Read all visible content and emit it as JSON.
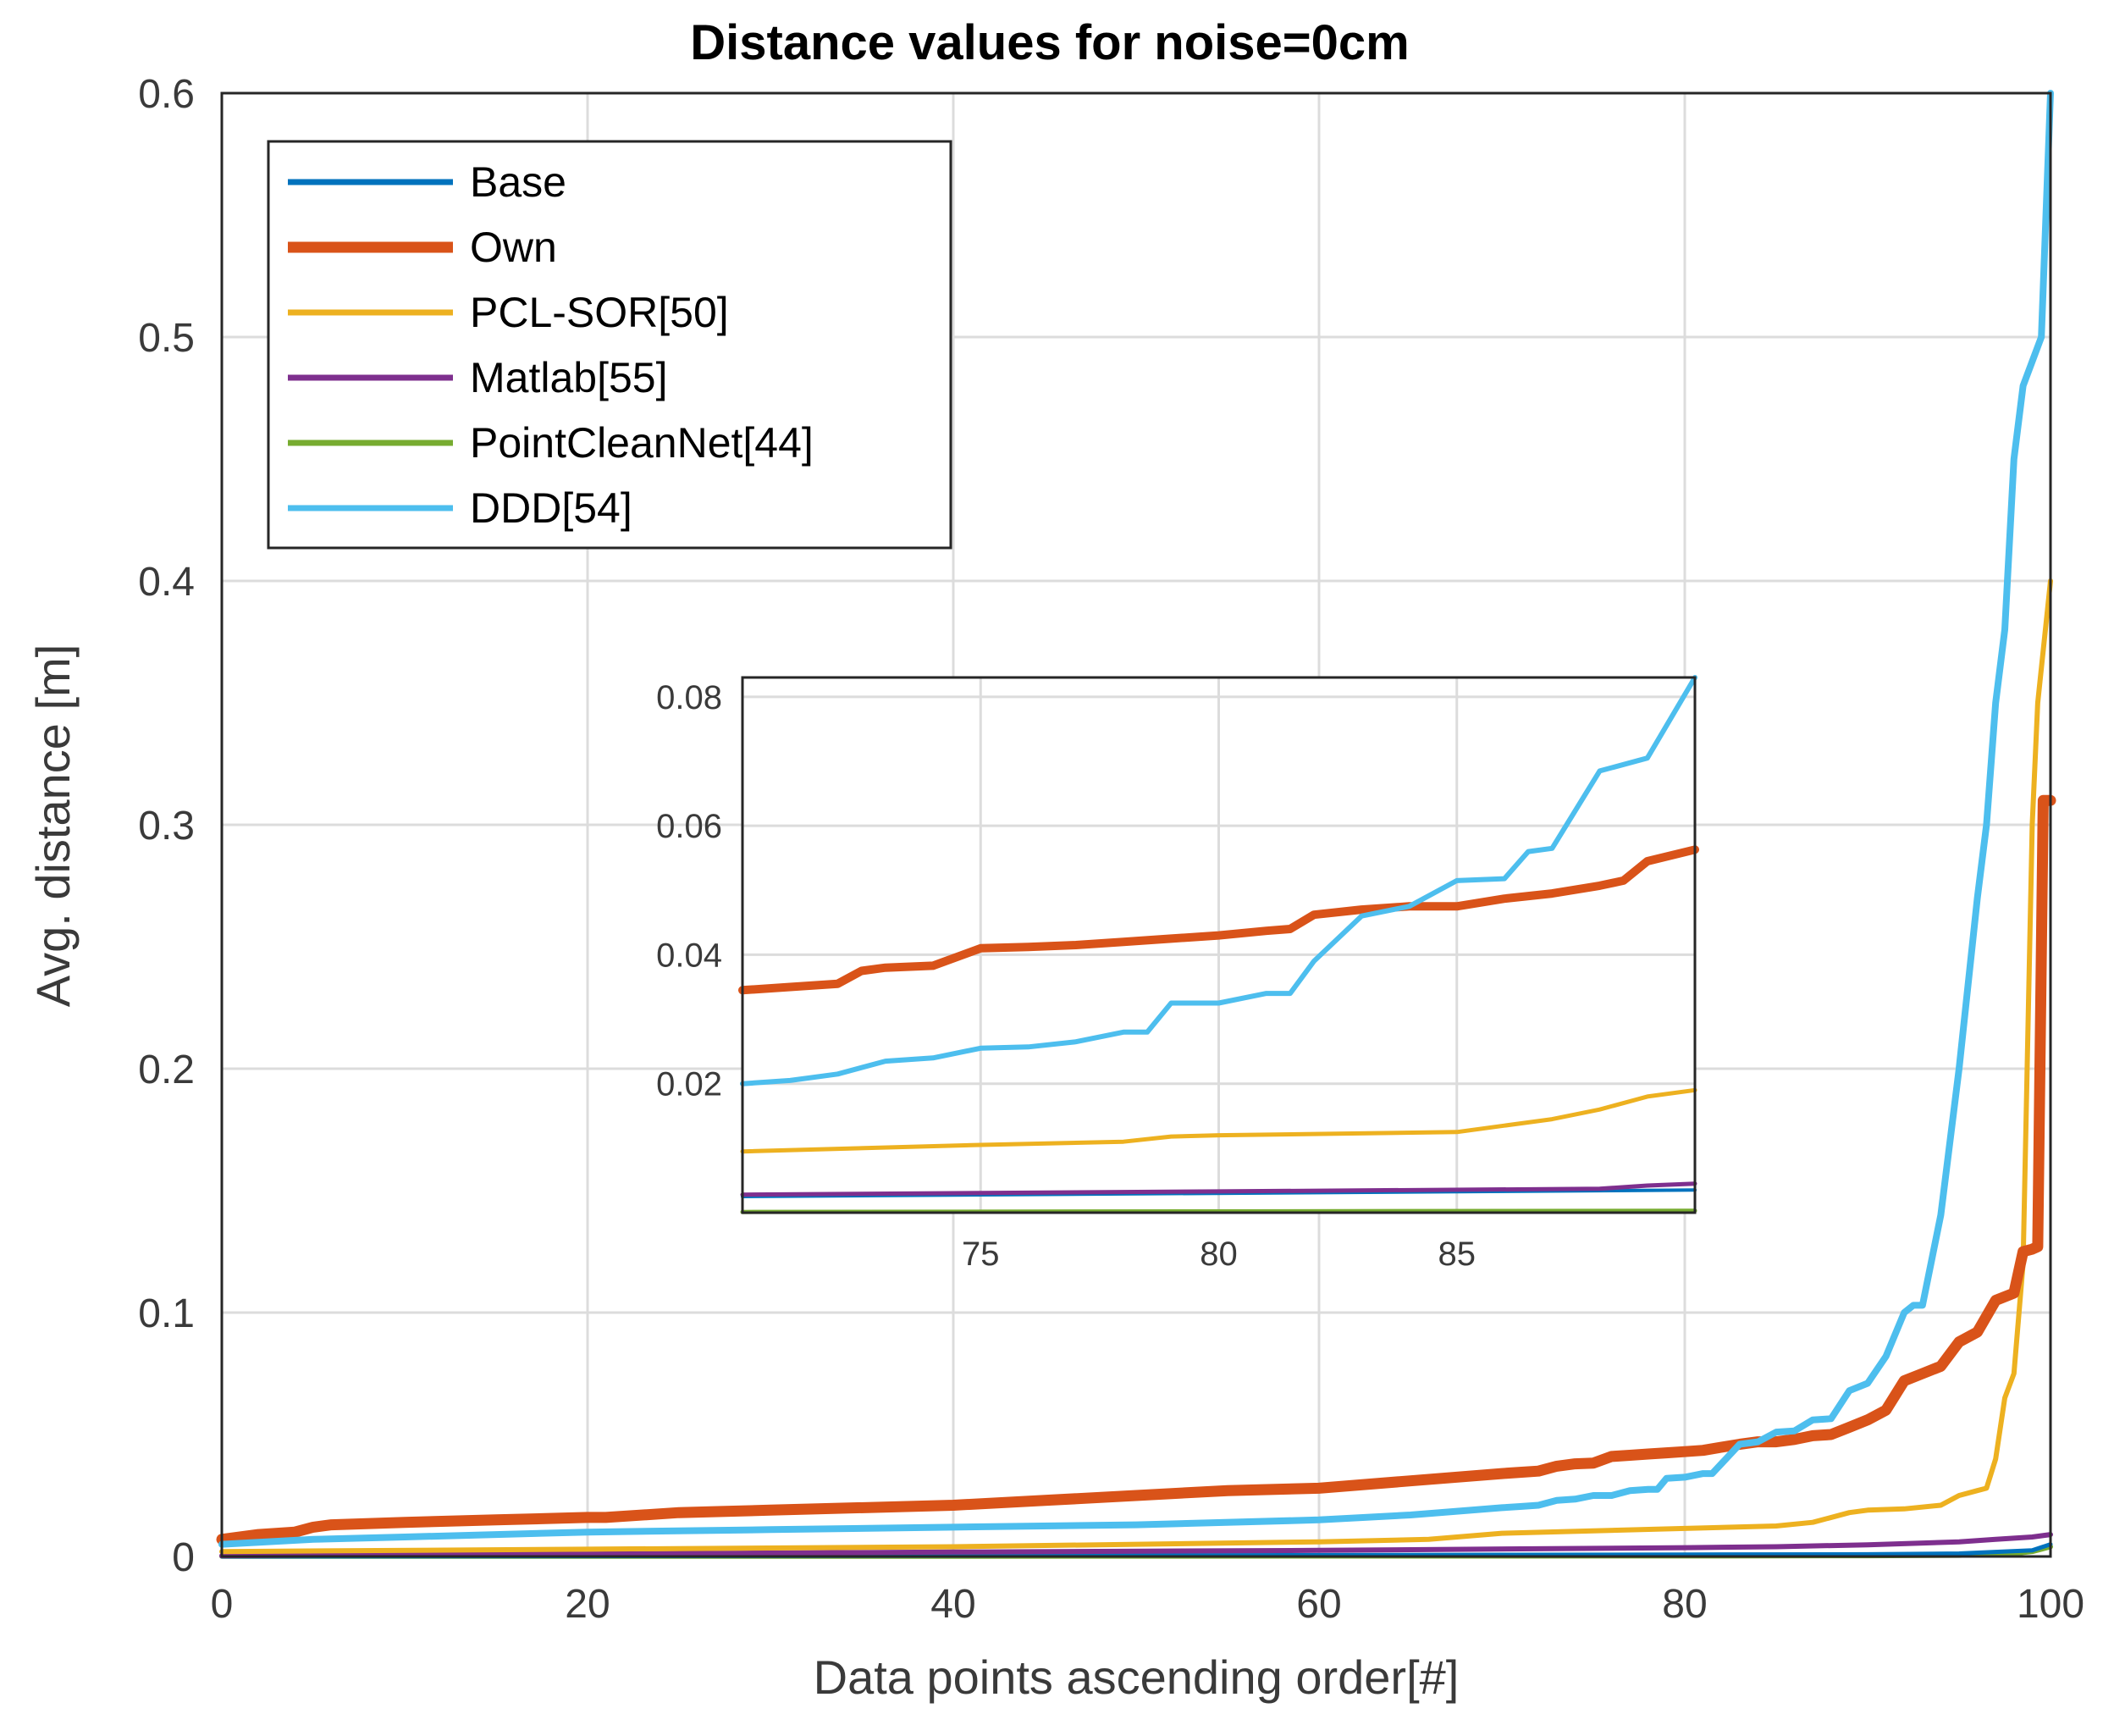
{
  "chart_data": [
    {
      "type": "line",
      "title": "Distance values for noise=0cm",
      "xlabel": "Data points ascending order[#]",
      "ylabel": "Avg. distance [m]",
      "xlim": [
        0,
        100
      ],
      "ylim": [
        0,
        0.6
      ],
      "xticks": [
        0,
        20,
        40,
        60,
        80,
        100
      ],
      "xtick_labels": [
        "0",
        "20",
        "40",
        "60",
        "80",
        "100"
      ],
      "yticks": [
        0,
        0.1,
        0.2,
        0.3,
        0.4,
        0.5,
        0.6
      ],
      "ytick_labels": [
        "0",
        "0.1",
        "0.2",
        "0.3",
        "0.4",
        "0.5",
        "0.6"
      ],
      "grid": true,
      "legend_position": "top-left",
      "series": [
        {
          "name": "Base",
          "color": "#0072BD",
          "x": [
            0,
            40,
            80,
            90,
            95,
            99,
            100
          ],
          "values": [
            0.0,
            0.0003,
            0.0008,
            0.0009,
            0.0012,
            0.0025,
            0.005
          ]
        },
        {
          "name": "Own",
          "color": "#D95319",
          "x": [
            0,
            2,
            4,
            5,
            6,
            10,
            15,
            20,
            21,
            25,
            30,
            40,
            45,
            50,
            55,
            60,
            65,
            70,
            71,
            72,
            73,
            74,
            75,
            76,
            77,
            78,
            79,
            80,
            81,
            82,
            83,
            84,
            85,
            86,
            87,
            88,
            89,
            90,
            91,
            92,
            93,
            94,
            95,
            96,
            97,
            98,
            98.5,
            99,
            99.3,
            99.6,
            100
          ],
          "values": [
            0.007,
            0.009,
            0.01,
            0.012,
            0.013,
            0.014,
            0.015,
            0.016,
            0.016,
            0.018,
            0.019,
            0.021,
            0.023,
            0.025,
            0.027,
            0.028,
            0.031,
            0.034,
            0.0345,
            0.035,
            0.037,
            0.038,
            0.0383,
            0.041,
            0.0415,
            0.042,
            0.0425,
            0.043,
            0.0435,
            0.0448,
            0.046,
            0.047,
            0.047,
            0.048,
            0.0495,
            0.05,
            0.053,
            0.056,
            0.06,
            0.072,
            0.075,
            0.078,
            0.088,
            0.092,
            0.105,
            0.108,
            0.125,
            0.126,
            0.127,
            0.31,
            0.31
          ]
        },
        {
          "name": "PCL-SOR[50]",
          "color": "#EDB120",
          "x": [
            0,
            20,
            40,
            60,
            66,
            70,
            75,
            80,
            85,
            87,
            89,
            90,
            92,
            94,
            95,
            96,
            96.5,
            97,
            97.5,
            98,
            98.5,
            99,
            99.3,
            100
          ],
          "values": [
            0.002,
            0.003,
            0.004,
            0.006,
            0.007,
            0.0095,
            0.0105,
            0.0115,
            0.0125,
            0.014,
            0.018,
            0.019,
            0.0195,
            0.021,
            0.025,
            0.027,
            0.028,
            0.04,
            0.065,
            0.075,
            0.12,
            0.3,
            0.35,
            0.4
          ]
        },
        {
          "name": "Matlab[55]",
          "color": "#7E2F8E",
          "x": [
            0,
            20,
            40,
            60,
            80,
            85,
            90,
            95,
            97,
            99,
            100
          ],
          "values": [
            0.0003,
            0.001,
            0.0018,
            0.0025,
            0.0036,
            0.004,
            0.0048,
            0.006,
            0.007,
            0.008,
            0.009
          ]
        },
        {
          "name": "PointCleanNet[44]",
          "color": "#77AC30",
          "x": [
            0,
            40,
            80,
            90,
            95,
            98,
            99,
            100
          ],
          "values": [
            0.0001,
            0.0001,
            0.0002,
            0.0003,
            0.0005,
            0.0012,
            0.002,
            0.004
          ]
        },
        {
          "name": "DDD[54]",
          "color": "#4DBEEE",
          "x": [
            0,
            5,
            10,
            20,
            30,
            40,
            50,
            60,
            65,
            70,
            71,
            72,
            73,
            74,
            75,
            76,
            77,
            78,
            78.5,
            79,
            80,
            81,
            81.5,
            83,
            84,
            85,
            86,
            87,
            88,
            89,
            90,
            91,
            92,
            92.5,
            93,
            94,
            95,
            96,
            96.5,
            97,
            97.5,
            98,
            98.5,
            99,
            99.5,
            100
          ],
          "values": [
            0.005,
            0.007,
            0.008,
            0.01,
            0.011,
            0.012,
            0.013,
            0.015,
            0.017,
            0.02,
            0.0205,
            0.021,
            0.023,
            0.0235,
            0.025,
            0.025,
            0.027,
            0.0275,
            0.0275,
            0.032,
            0.0325,
            0.034,
            0.034,
            0.046,
            0.047,
            0.051,
            0.0515,
            0.056,
            0.0565,
            0.068,
            0.071,
            0.082,
            0.1,
            0.103,
            0.103,
            0.14,
            0.2,
            0.27,
            0.3,
            0.35,
            0.38,
            0.45,
            0.48,
            0.49,
            0.5,
            0.6
          ]
        }
      ]
    },
    {
      "type": "line",
      "title": "",
      "xlim": [
        70,
        90
      ],
      "ylim": [
        0,
        0.083
      ],
      "xticks": [
        75,
        80,
        85
      ],
      "xtick_labels": [
        "75",
        "80",
        "85"
      ],
      "yticks": [
        0.02,
        0.04,
        0.06,
        0.08
      ],
      "ytick_labels": [
        "0.02",
        "0.04",
        "0.06",
        "0.08"
      ],
      "grid": true,
      "note": "inset zoom of the main chart for data points 70-90",
      "series": [
        {
          "name": "Base",
          "color": "#0072BD",
          "x": [
            70,
            90
          ],
          "values": [
            0.0025,
            0.0035
          ]
        },
        {
          "name": "Own",
          "color": "#D95319",
          "x": [
            70,
            71,
            72,
            72.5,
            73,
            74,
            75,
            76,
            77,
            78,
            79,
            80,
            81,
            81.5,
            82,
            83,
            84,
            85,
            86,
            87,
            88,
            88.5,
            89,
            90
          ],
          "values": [
            0.0345,
            0.035,
            0.0355,
            0.0375,
            0.038,
            0.0383,
            0.041,
            0.0412,
            0.0415,
            0.042,
            0.0425,
            0.043,
            0.0437,
            0.044,
            0.0462,
            0.047,
            0.0475,
            0.0475,
            0.0487,
            0.0495,
            0.0507,
            0.0515,
            0.0545,
            0.0563
          ]
        },
        {
          "name": "PCL-SOR[50]",
          "color": "#EDB120",
          "x": [
            70,
            75,
            78,
            79,
            80,
            85,
            86,
            87,
            88,
            89,
            90
          ],
          "values": [
            0.0095,
            0.0105,
            0.011,
            0.0118,
            0.012,
            0.0125,
            0.0135,
            0.0145,
            0.016,
            0.018,
            0.019
          ]
        },
        {
          "name": "Matlab[55]",
          "color": "#7E2F8E",
          "x": [
            70,
            80,
            88,
            89,
            90
          ],
          "values": [
            0.0028,
            0.0033,
            0.0037,
            0.0042,
            0.0045
          ]
        },
        {
          "name": "PointCleanNet[44]",
          "color": "#77AC30",
          "x": [
            70,
            90
          ],
          "values": [
            0.0001,
            0.0003
          ]
        },
        {
          "name": "DDD[54]",
          "color": "#4DBEEE",
          "x": [
            70,
            71,
            72,
            73,
            74,
            75,
            76,
            77,
            78,
            78.5,
            79,
            80,
            81,
            81.5,
            82,
            83,
            84,
            85,
            86,
            86.5,
            87,
            88,
            89,
            90
          ],
          "values": [
            0.02,
            0.0205,
            0.0215,
            0.0235,
            0.024,
            0.0255,
            0.0257,
            0.0265,
            0.028,
            0.028,
            0.0325,
            0.0325,
            0.034,
            0.034,
            0.039,
            0.046,
            0.0475,
            0.0515,
            0.0518,
            0.056,
            0.0565,
            0.0685,
            0.0705,
            0.083
          ]
        }
      ]
    }
  ]
}
